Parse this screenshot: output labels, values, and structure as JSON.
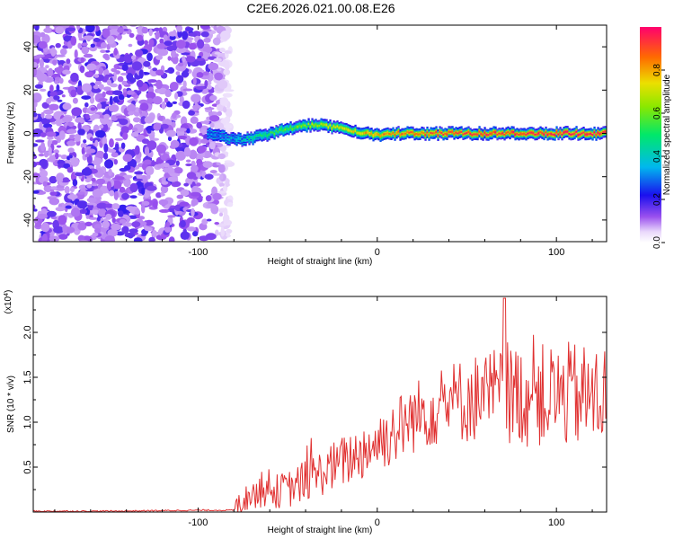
{
  "figure_title": "C2E6.2026.021.00.08.E26",
  "chart_data": [
    {
      "type": "heatmap",
      "title": "C2E6.2026.021.00.08.E26",
      "xlabel": "Height of straight line (km)",
      "ylabel": "Frequency (Hz)",
      "xlim": [
        -192,
        128
      ],
      "ylim": [
        -50,
        50
      ],
      "xticks": [
        -100,
        0,
        100
      ],
      "xtick_labels": [
        "-100",
        "0",
        "100"
      ],
      "yticks": [
        -40,
        -20,
        0,
        20,
        40
      ],
      "ytick_labels": [
        "-40",
        "-20",
        "0",
        "20",
        "40"
      ],
      "colorbar": {
        "label": "Normalized spectral amplitude",
        "range": [
          0,
          1
        ],
        "ticks": [
          0.0,
          0.2,
          0.4,
          0.6,
          0.8
        ],
        "tick_labels": [
          "0.0",
          "0.2",
          "0.4",
          "0.6",
          "0.8"
        ]
      },
      "noise_region_x": [
        -192,
        -86
      ],
      "signal_onset_x": -95,
      "ridge": {
        "x": [
          -95,
          -85,
          -75,
          -65,
          -55,
          -45,
          -35,
          -25,
          -15,
          -5,
          0,
          10,
          20,
          40,
          60,
          80,
          100,
          128
        ],
        "y": [
          0,
          -2,
          -3,
          -1,
          1,
          3,
          4,
          3,
          1,
          0,
          -1,
          0,
          0,
          0,
          0,
          0,
          0,
          0
        ],
        "peak_amplitude": [
          0.3,
          0.35,
          0.4,
          0.5,
          0.55,
          0.6,
          0.65,
          0.7,
          0.75,
          0.8,
          0.82,
          0.85,
          0.88,
          0.9,
          0.92,
          0.93,
          0.94,
          0.95
        ]
      }
    },
    {
      "type": "line",
      "xlabel": "Height of straight line (km)",
      "ylabel": "SNR (10 * v/v)",
      "scale_label_base": "(x10",
      "scale_label_exp": "4",
      "scale_label_close": ")",
      "xlim": [
        -192,
        128
      ],
      "ylim": [
        0,
        2.4
      ],
      "xticks": [
        -100,
        0,
        100
      ],
      "xtick_labels": [
        "-100",
        "0",
        "100"
      ],
      "yticks": [
        0.5,
        1.0,
        1.5,
        2.0
      ],
      "ytick_labels": [
        "0.5",
        "1.0",
        "1.5",
        "2.0"
      ],
      "color": "#e03030",
      "series": [
        {
          "name": "SNR",
          "x": [
            -192,
            -150,
            -100,
            -80,
            -75,
            -70,
            -60,
            -50,
            -40,
            -30,
            -20,
            -10,
            0,
            10,
            20,
            30,
            40,
            50,
            60,
            70,
            80,
            90,
            100,
            110,
            120,
            128
          ],
          "y": [
            0.01,
            0.01,
            0.02,
            0.02,
            0.12,
            0.2,
            0.22,
            0.25,
            0.35,
            0.45,
            0.55,
            0.65,
            0.78,
            0.9,
            1.05,
            1.15,
            1.22,
            1.25,
            1.3,
            1.32,
            1.3,
            1.28,
            1.3,
            1.3,
            1.27,
            1.3
          ]
        }
      ],
      "peak": {
        "x": 71,
        "y": 2.38
      }
    }
  ]
}
